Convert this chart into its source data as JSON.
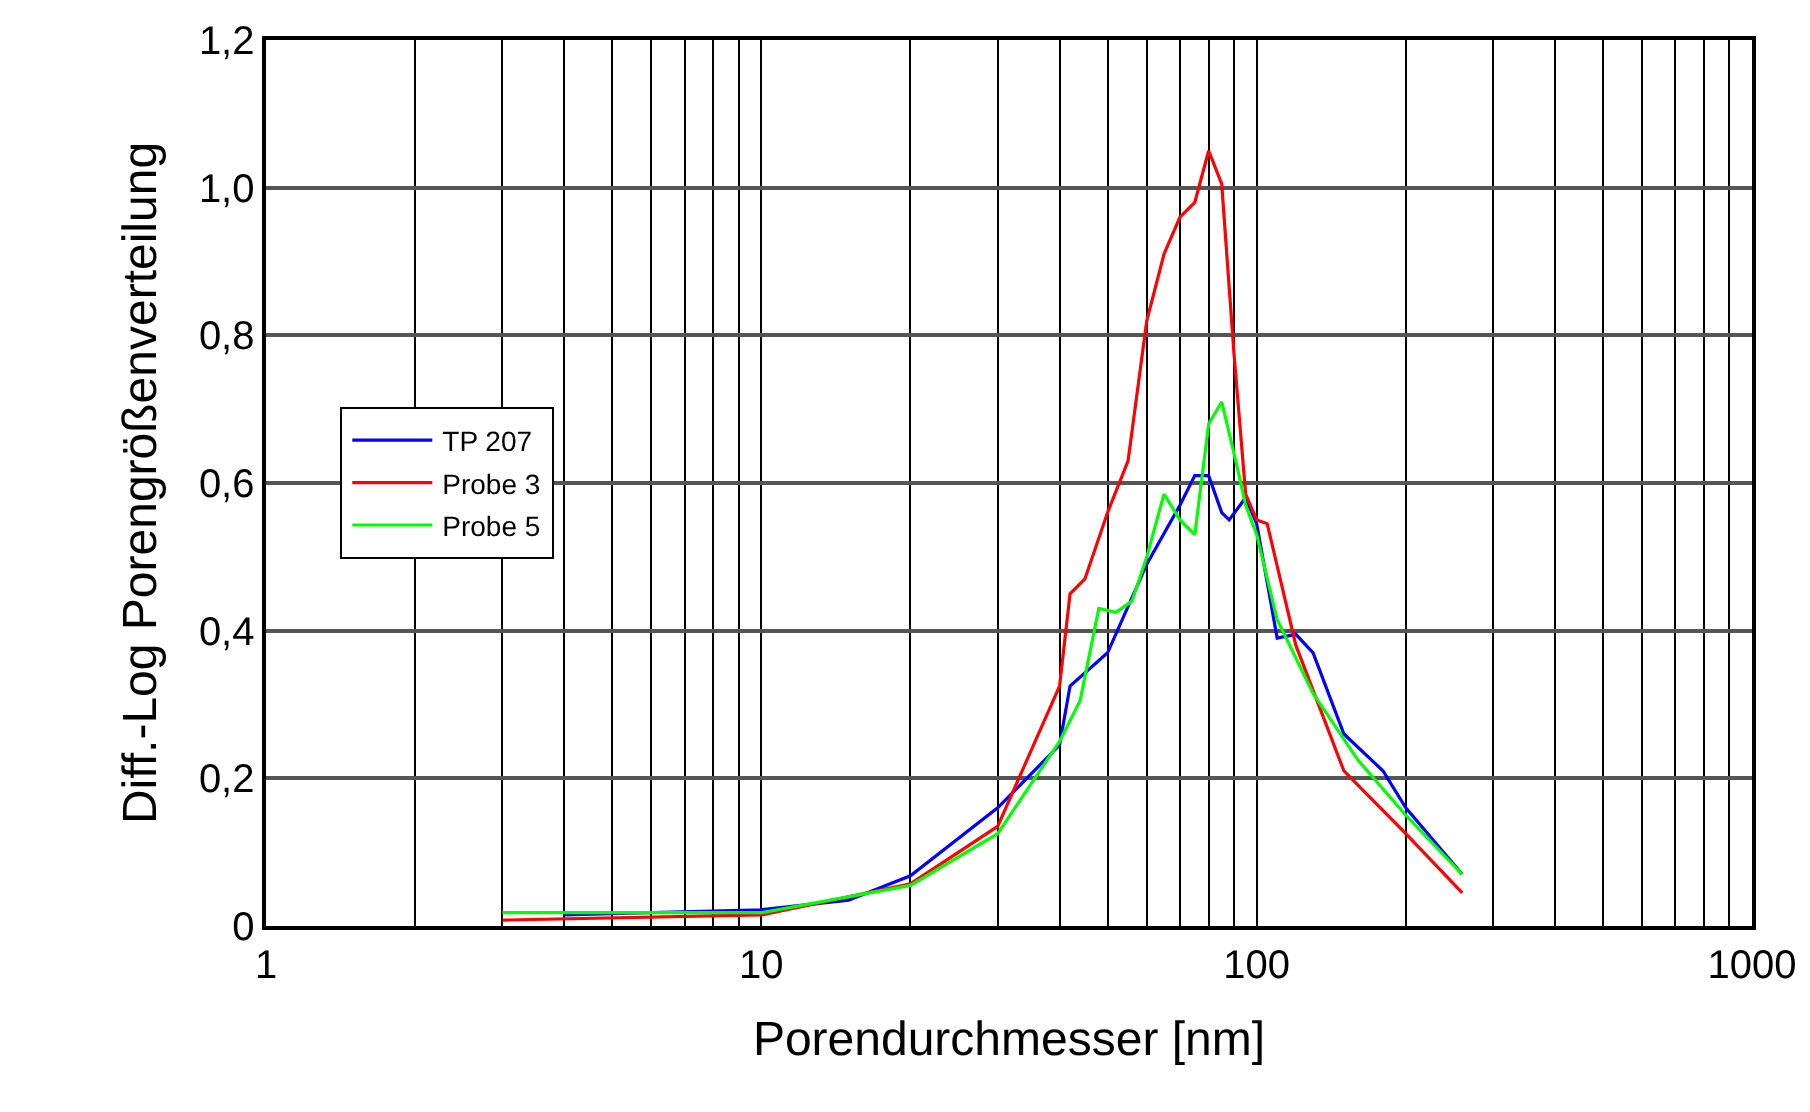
{
  "chart_data": {
    "type": "line",
    "xlabel": "Porendurchmesser [nm]",
    "ylabel": "Diff.-Log Porengrößenverteilung",
    "log": "x",
    "xlim": [
      1,
      1000
    ],
    "xticks": [
      1,
      10,
      100,
      1000
    ],
    "ylim": [
      0,
      1.2
    ],
    "yticks": [
      0,
      {
        "value": 0.2,
        "label": "0,2"
      },
      {
        "value": 0.4,
        "label": "0,4"
      },
      {
        "value": 0.6,
        "label": "0,6"
      },
      {
        "value": 0.8,
        "label": "0,8"
      },
      {
        "value": 1.0,
        "label": "1,0"
      },
      {
        "value": 1.2,
        "label": "1,2"
      }
    ],
    "grid": true,
    "legend": "left",
    "marker": "none",
    "line_style": "solid",
    "series": [
      {
        "name": "TP 207",
        "color": "#0000ff",
        "x": [
          4,
          10,
          15,
          20,
          30,
          40,
          42,
          50,
          60,
          70,
          75,
          80,
          85,
          88,
          95,
          100,
          110,
          120,
          130,
          150,
          180,
          200,
          260
        ],
        "values": [
          0.015,
          0.022,
          0.035,
          0.068,
          0.16,
          0.245,
          0.325,
          0.37,
          0.49,
          0.57,
          0.61,
          0.61,
          0.56,
          0.55,
          0.58,
          0.545,
          0.39,
          0.395,
          0.37,
          0.26,
          0.21,
          0.16,
          0.07
        ]
      },
      {
        "name": "Probe 3",
        "color": "#ff0000",
        "x": [
          3,
          10,
          20,
          30,
          40,
          42,
          45,
          50,
          55,
          60,
          65,
          70,
          75,
          80,
          85,
          90,
          95,
          100,
          105,
          120,
          150,
          200,
          260
        ],
        "values": [
          0.008,
          0.015,
          0.057,
          0.135,
          0.325,
          0.45,
          0.47,
          0.56,
          0.63,
          0.82,
          0.91,
          0.96,
          0.98,
          1.05,
          1.005,
          0.775,
          0.585,
          0.55,
          0.545,
          0.38,
          0.21,
          0.125,
          0.045
        ]
      },
      {
        "name": "Probe 5",
        "color": "#00ff00",
        "x": [
          3,
          10,
          20,
          30,
          40,
          44,
          48,
          52,
          56,
          60,
          65,
          70,
          75,
          80,
          85,
          90,
          95,
          100,
          110,
          130,
          160,
          200,
          260
        ],
        "values": [
          0.018,
          0.018,
          0.055,
          0.125,
          0.25,
          0.305,
          0.43,
          0.425,
          0.44,
          0.5,
          0.585,
          0.55,
          0.53,
          0.68,
          0.71,
          0.64,
          0.57,
          0.53,
          0.415,
          0.315,
          0.225,
          0.15,
          0.07
        ]
      }
    ]
  }
}
